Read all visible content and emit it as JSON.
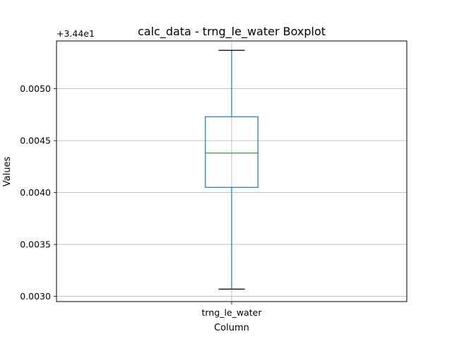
{
  "chart_data": {
    "type": "boxplot",
    "title": "calc_data - trng_le_water Boxplot",
    "xlabel": "Column",
    "ylabel": "Values",
    "offset_label": "+3.44e1",
    "offset": 34.4,
    "categories": [
      "trng_le_water"
    ],
    "ylim": [
      0.00295,
      0.00546
    ],
    "yticks": [
      0.003,
      0.0035,
      0.004,
      0.0045,
      0.005
    ],
    "ytick_labels": [
      "0.0030",
      "0.0035",
      "0.0040",
      "0.0045",
      "0.0050"
    ],
    "grid": true,
    "boxes": [
      {
        "category": "trng_le_water",
        "whisker_low": 0.00307,
        "q1": 0.00405,
        "median": 0.00438,
        "q3": 0.00473,
        "whisker_high": 0.00537
      }
    ],
    "colors": {
      "box": "#1f77b4",
      "median": "#2ca02c",
      "cap": "#000000",
      "grid": "#b0b0b0"
    }
  }
}
